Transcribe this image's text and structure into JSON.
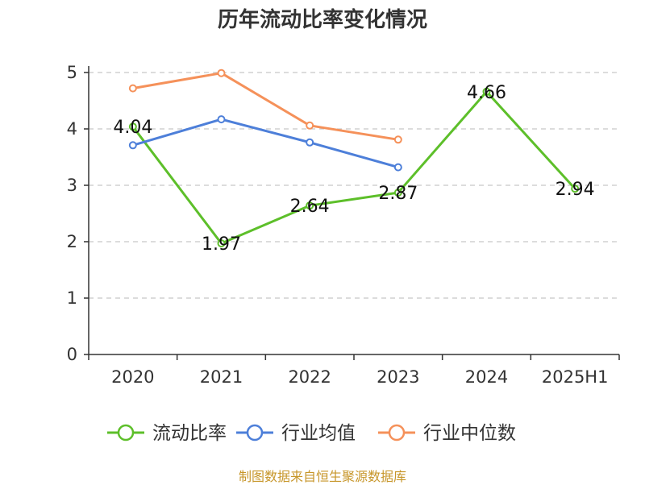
{
  "chart_data": {
    "type": "line",
    "title": "历年流动比率变化情况",
    "categories": [
      "2020",
      "2021",
      "2022",
      "2023",
      "2024",
      "2025H1"
    ],
    "ylim": [
      0,
      5
    ],
    "yticks": [
      0,
      1,
      2,
      3,
      4,
      5
    ],
    "grid": true,
    "legend_position": "bottom",
    "series": [
      {
        "name": "流动比率",
        "color": "#5dbf2a",
        "values": [
          4.04,
          1.97,
          2.64,
          2.87,
          4.66,
          2.94
        ],
        "show_labels": true,
        "labels": [
          "4.04",
          "1.97",
          "2.64",
          "2.87",
          "4.66",
          "2.94"
        ]
      },
      {
        "name": "行业均值",
        "color": "#4d7fd9",
        "values": [
          3.71,
          4.17,
          3.76,
          3.32,
          null,
          null
        ],
        "show_labels": false
      },
      {
        "name": "行业中位数",
        "color": "#f5915a",
        "values": [
          4.72,
          4.99,
          4.06,
          3.81,
          null,
          null
        ],
        "show_labels": false
      }
    ]
  },
  "footer": {
    "source": "制图数据来自恒生聚源数据库"
  }
}
